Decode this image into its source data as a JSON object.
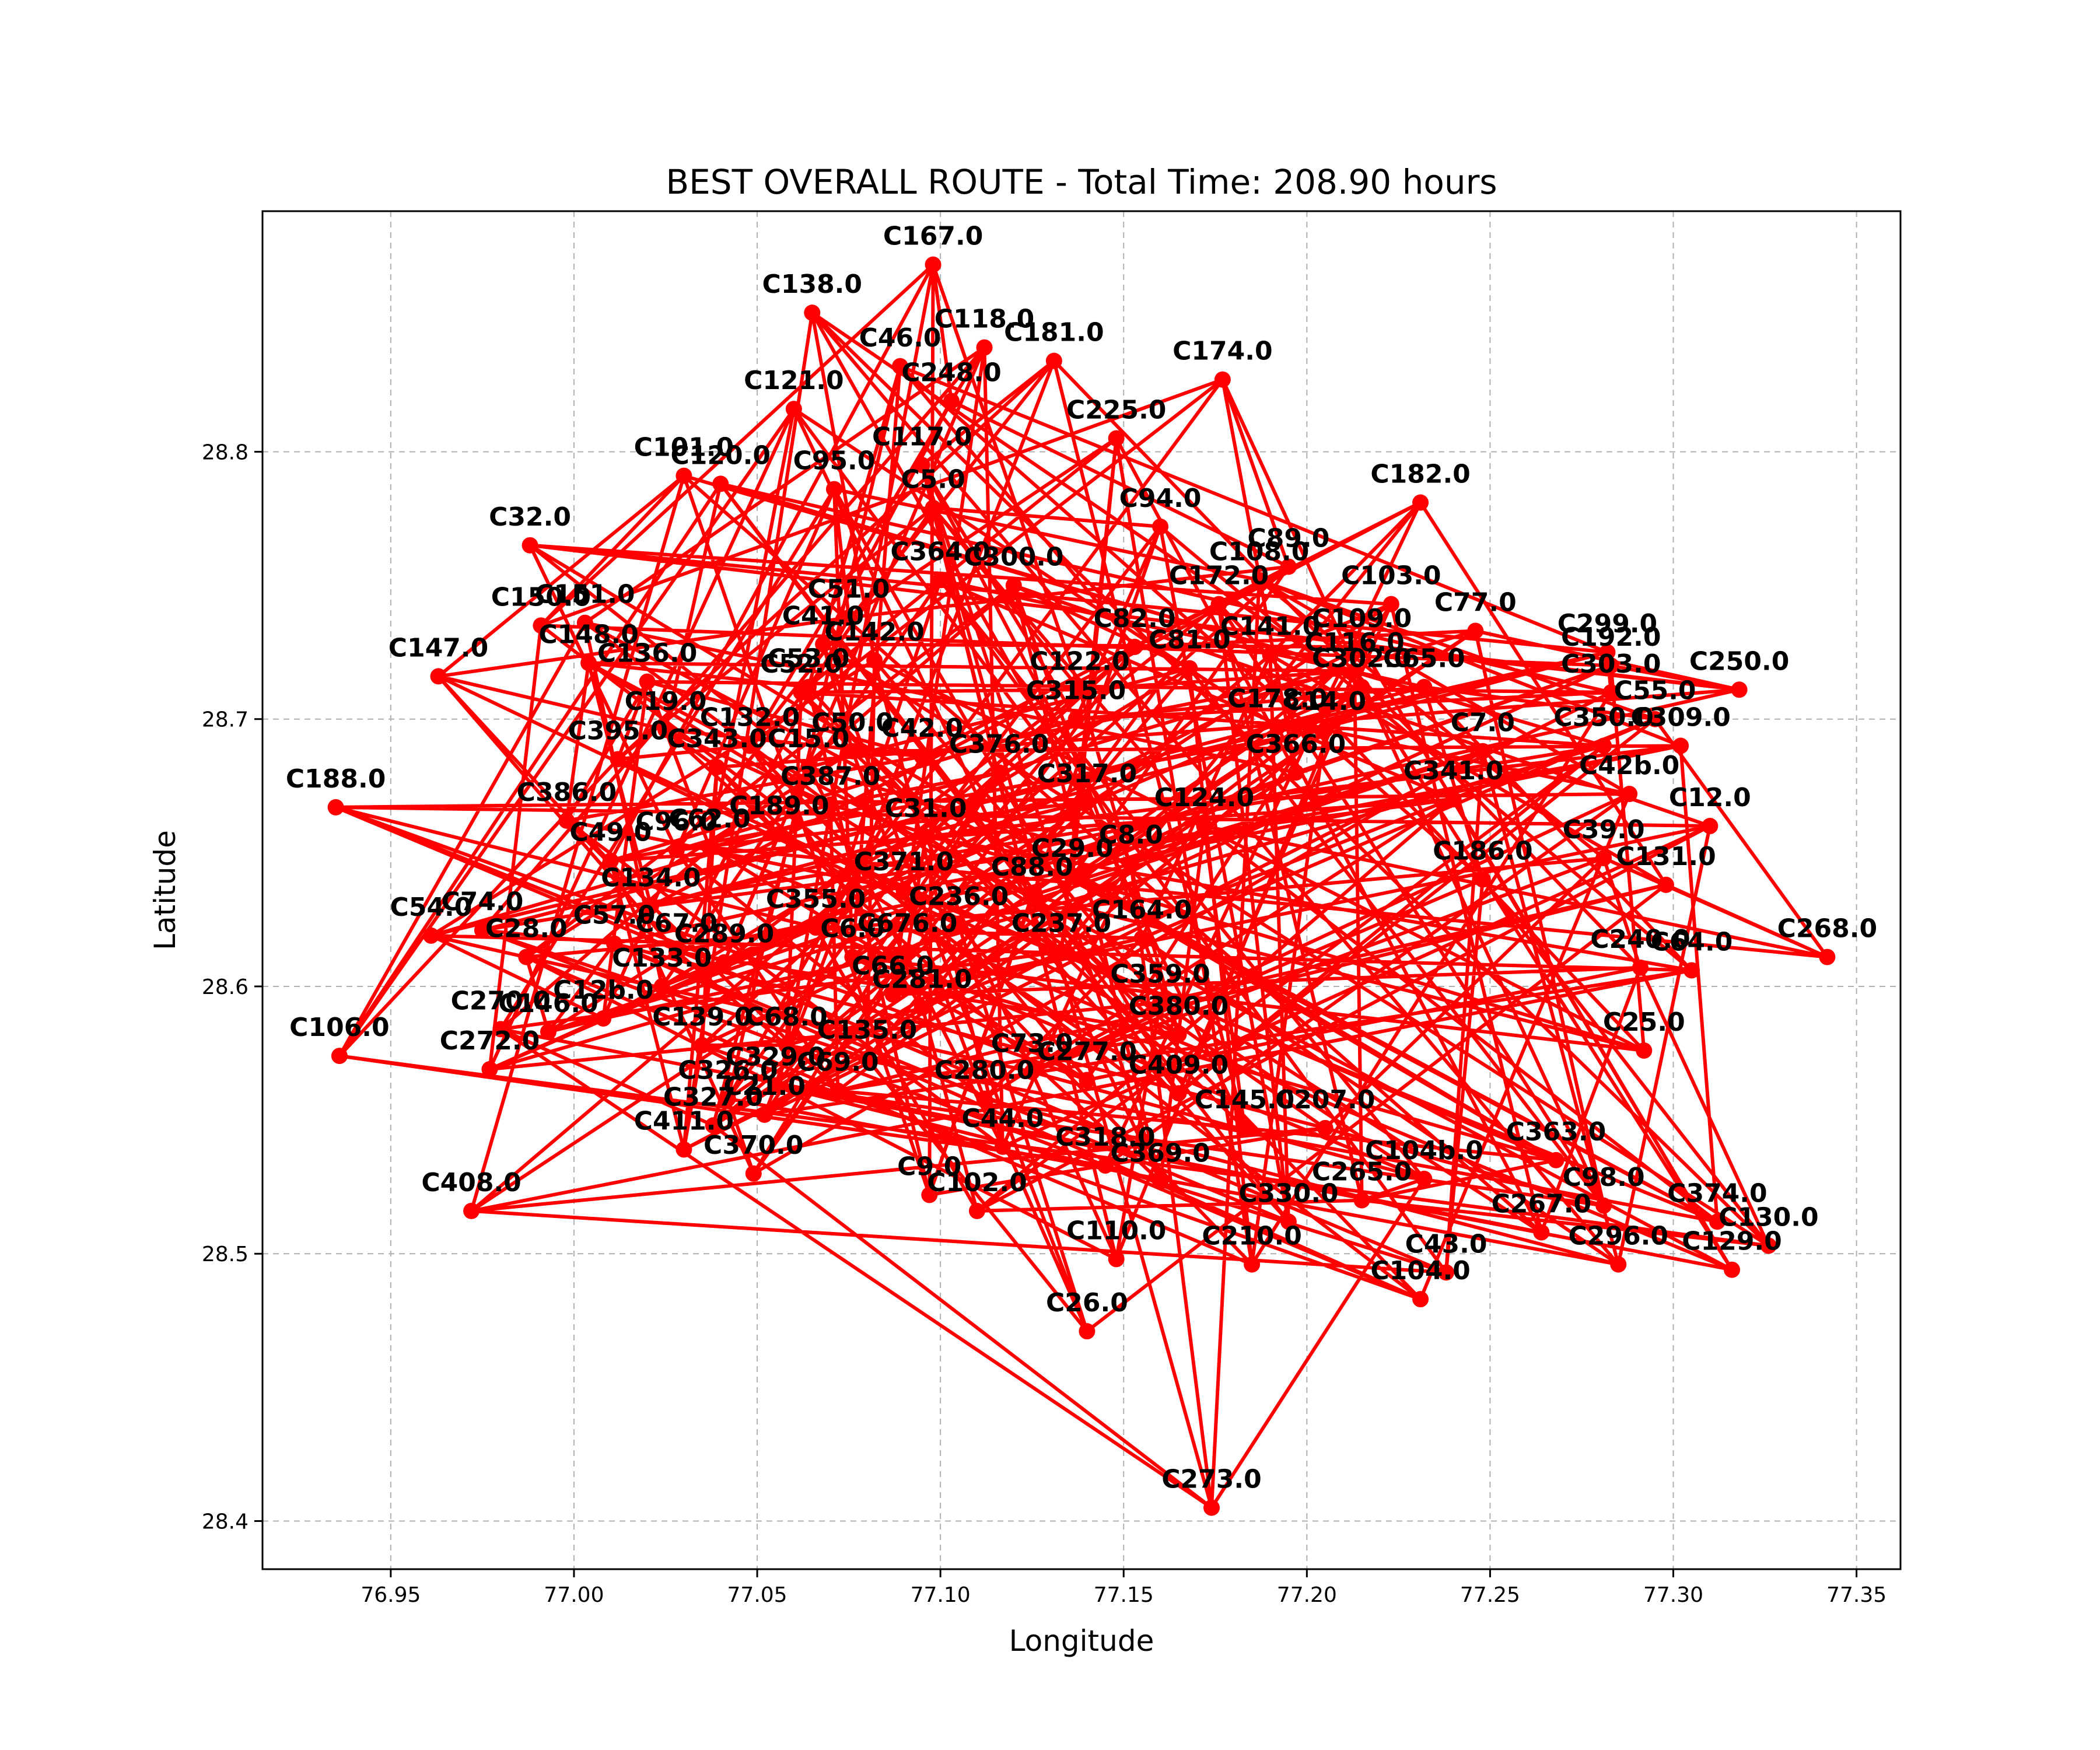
{
  "chart_data": {
    "type": "line",
    "title": "BEST OVERALL ROUTE - Total Time: 208.90 hours",
    "xlabel": "Longitude",
    "ylabel": "Latitude",
    "xlim": [
      76.915,
      77.362
    ],
    "ylim": [
      28.382,
      28.89
    ],
    "xticks": [
      "76.95",
      "77.00",
      "77.05",
      "77.10",
      "77.15",
      "77.20",
      "77.25",
      "77.30",
      "77.35"
    ],
    "yticks": [
      "28.4",
      "28.5",
      "28.6",
      "28.7",
      "28.8"
    ],
    "grid": true,
    "line_color": "#ff0000",
    "marker": "circle",
    "points": [
      {
        "label": "C167.0",
        "x": 77.098,
        "y": 28.87
      },
      {
        "label": "C138.0",
        "x": 77.065,
        "y": 28.852
      },
      {
        "label": "C118.0",
        "x": 77.112,
        "y": 28.839
      },
      {
        "label": "C181.0",
        "x": 77.131,
        "y": 28.834
      },
      {
        "label": "C46.0",
        "x": 77.089,
        "y": 28.832
      },
      {
        "label": "C248.0",
        "x": 77.103,
        "y": 28.819
      },
      {
        "label": "C121.0",
        "x": 77.06,
        "y": 28.816
      },
      {
        "label": "C174.0",
        "x": 77.177,
        "y": 28.827
      },
      {
        "label": "C225.0",
        "x": 77.148,
        "y": 28.805
      },
      {
        "label": "C117.0",
        "x": 77.095,
        "y": 28.795
      },
      {
        "label": "C101.0",
        "x": 77.03,
        "y": 28.791
      },
      {
        "label": "C120.0",
        "x": 77.04,
        "y": 28.788
      },
      {
        "label": "C95.0",
        "x": 77.071,
        "y": 28.786
      },
      {
        "label": "C5.0",
        "x": 77.098,
        "y": 28.779
      },
      {
        "label": "C182.0",
        "x": 77.231,
        "y": 28.781
      },
      {
        "label": "C94.0",
        "x": 77.16,
        "y": 28.772
      },
      {
        "label": "C32.0",
        "x": 76.988,
        "y": 28.765
      },
      {
        "label": "C364.0",
        "x": 77.1,
        "y": 28.752
      },
      {
        "label": "C300.0",
        "x": 77.12,
        "y": 28.75
      },
      {
        "label": "C89.0",
        "x": 77.195,
        "y": 28.757
      },
      {
        "label": "C108.0",
        "x": 77.187,
        "y": 28.752
      },
      {
        "label": "C172.0",
        "x": 77.176,
        "y": 28.743
      },
      {
        "label": "C103.0",
        "x": 77.223,
        "y": 28.743
      },
      {
        "label": "C51.0",
        "x": 77.075,
        "y": 28.738
      },
      {
        "label": "C150.0",
        "x": 76.991,
        "y": 28.735
      },
      {
        "label": "C151.0",
        "x": 77.003,
        "y": 28.736
      },
      {
        "label": "C77.0",
        "x": 77.246,
        "y": 28.733
      },
      {
        "label": "C41.0",
        "x": 77.068,
        "y": 28.728
      },
      {
        "label": "C82.0",
        "x": 77.153,
        "y": 28.727
      },
      {
        "label": "C109.0",
        "x": 77.215,
        "y": 28.727
      },
      {
        "label": "C141.0",
        "x": 77.19,
        "y": 28.724
      },
      {
        "label": "C148.0",
        "x": 77.004,
        "y": 28.721
      },
      {
        "label": "C147.0",
        "x": 76.963,
        "y": 28.716
      },
      {
        "label": "C136.0",
        "x": 77.02,
        "y": 28.714
      },
      {
        "label": "C142.0",
        "x": 77.082,
        "y": 28.722
      },
      {
        "label": "C81.0",
        "x": 77.168,
        "y": 28.719
      },
      {
        "label": "C116.0",
        "x": 77.213,
        "y": 28.718
      },
      {
        "label": "C299.0",
        "x": 77.282,
        "y": 28.725
      },
      {
        "label": "C192.0",
        "x": 77.283,
        "y": 28.72
      },
      {
        "label": "C52.0",
        "x": 77.062,
        "y": 28.71
      },
      {
        "label": "C53.0",
        "x": 77.064,
        "y": 28.712
      },
      {
        "label": "C122.0",
        "x": 77.138,
        "y": 28.711
      },
      {
        "label": "C302.0",
        "x": 77.215,
        "y": 28.712
      },
      {
        "label": "C65.0",
        "x": 77.232,
        "y": 28.712
      },
      {
        "label": "C303.0",
        "x": 77.283,
        "y": 28.71
      },
      {
        "label": "C250.0",
        "x": 77.318,
        "y": 28.711
      },
      {
        "label": "C55.0",
        "x": 77.295,
        "y": 28.7
      },
      {
        "label": "C315.0",
        "x": 77.137,
        "y": 28.7
      },
      {
        "label": "C178.0",
        "x": 77.192,
        "y": 28.697
      },
      {
        "label": "C14.0",
        "x": 77.205,
        "y": 28.696
      },
      {
        "label": "C19.0",
        "x": 77.025,
        "y": 28.696
      },
      {
        "label": "C132.0",
        "x": 77.048,
        "y": 28.69
      },
      {
        "label": "C50.0",
        "x": 77.076,
        "y": 28.688
      },
      {
        "label": "C42.0",
        "x": 77.095,
        "y": 28.686
      },
      {
        "label": "C7.0",
        "x": 77.248,
        "y": 28.688
      },
      {
        "label": "C350.0",
        "x": 77.281,
        "y": 28.69
      },
      {
        "label": "C309.0",
        "x": 77.302,
        "y": 28.69
      },
      {
        "label": "C395.0",
        "x": 77.012,
        "y": 28.685
      },
      {
        "label": "C343.0",
        "x": 77.039,
        "y": 28.682
      },
      {
        "label": "C15.0",
        "x": 77.064,
        "y": 28.682
      },
      {
        "label": "C376.0",
        "x": 77.116,
        "y": 28.68
      },
      {
        "label": "C366.0",
        "x": 77.197,
        "y": 28.68
      },
      {
        "label": "C317.0",
        "x": 77.14,
        "y": 28.669
      },
      {
        "label": "C341.0",
        "x": 77.24,
        "y": 28.67
      },
      {
        "label": "C42b.0",
        "x": 77.288,
        "y": 28.672
      },
      {
        "label": "C387.0",
        "x": 77.07,
        "y": 28.668
      },
      {
        "label": "C386.0",
        "x": 76.998,
        "y": 28.662
      },
      {
        "label": "C31.0",
        "x": 77.096,
        "y": 28.656
      },
      {
        "label": "C124.0",
        "x": 77.172,
        "y": 28.66
      },
      {
        "label": "C12.0",
        "x": 77.31,
        "y": 28.66
      },
      {
        "label": "C189.0",
        "x": 77.056,
        "y": 28.657
      },
      {
        "label": "C96.0",
        "x": 77.028,
        "y": 28.651
      },
      {
        "label": "C62.0",
        "x": 77.037,
        "y": 28.652
      },
      {
        "label": "C49.0",
        "x": 77.01,
        "y": 28.647
      },
      {
        "label": "C8.0",
        "x": 77.152,
        "y": 28.646
      },
      {
        "label": "C39.0",
        "x": 77.281,
        "y": 28.648
      },
      {
        "label": "C188.0",
        "x": 76.935,
        "y": 28.667
      },
      {
        "label": "C29.0",
        "x": 77.136,
        "y": 28.641
      },
      {
        "label": "C186.0",
        "x": 77.248,
        "y": 28.64
      },
      {
        "label": "C131.0",
        "x": 77.298,
        "y": 28.638
      },
      {
        "label": "C371.0",
        "x": 77.09,
        "y": 28.636
      },
      {
        "label": "C88.0",
        "x": 77.125,
        "y": 28.634
      },
      {
        "label": "C134.0",
        "x": 77.021,
        "y": 28.63
      },
      {
        "label": "C355.0",
        "x": 77.066,
        "y": 28.622
      },
      {
        "label": "C236.0",
        "x": 77.105,
        "y": 28.623
      },
      {
        "label": "C164.0",
        "x": 77.155,
        "y": 28.618
      },
      {
        "label": "C54.0",
        "x": 76.961,
        "y": 28.619
      },
      {
        "label": "C74.0",
        "x": 76.975,
        "y": 28.621
      },
      {
        "label": "C28.0",
        "x": 76.987,
        "y": 28.611
      },
      {
        "label": "C57.0",
        "x": 77.011,
        "y": 28.616
      },
      {
        "label": "C67.0",
        "x": 77.028,
        "y": 28.613
      },
      {
        "label": "C289.0",
        "x": 77.041,
        "y": 28.609
      },
      {
        "label": "C6.0",
        "x": 77.076,
        "y": 28.611
      },
      {
        "label": "C676.0",
        "x": 77.091,
        "y": 28.613
      },
      {
        "label": "C237.0",
        "x": 77.133,
        "y": 28.613
      },
      {
        "label": "C268.0",
        "x": 77.342,
        "y": 28.611
      },
      {
        "label": "C240.0",
        "x": 77.291,
        "y": 28.607
      },
      {
        "label": "C64.0",
        "x": 77.305,
        "y": 28.606
      },
      {
        "label": "C133.0",
        "x": 77.024,
        "y": 28.6
      },
      {
        "label": "C66.0",
        "x": 77.087,
        "y": 28.597
      },
      {
        "label": "C359.0",
        "x": 77.16,
        "y": 28.594
      },
      {
        "label": "C281.0",
        "x": 77.095,
        "y": 28.592
      },
      {
        "label": "C12b.0",
        "x": 77.008,
        "y": 28.588
      },
      {
        "label": "C270.0",
        "x": 76.98,
        "y": 28.584
      },
      {
        "label": "C146.0",
        "x": 76.993,
        "y": 28.583
      },
      {
        "label": "C139.0",
        "x": 77.035,
        "y": 28.578
      },
      {
        "label": "C68.0",
        "x": 77.058,
        "y": 28.578
      },
      {
        "label": "C135.0",
        "x": 77.08,
        "y": 28.573
      },
      {
        "label": "C106.0",
        "x": 76.936,
        "y": 28.574
      },
      {
        "label": "C272.0",
        "x": 76.977,
        "y": 28.569
      },
      {
        "label": "C380.0",
        "x": 77.165,
        "y": 28.582
      },
      {
        "label": "C73.0",
        "x": 77.125,
        "y": 28.568
      },
      {
        "label": "C25.0",
        "x": 77.292,
        "y": 28.576
      },
      {
        "label": "C280.0",
        "x": 77.112,
        "y": 28.558
      },
      {
        "label": "C277.0",
        "x": 77.14,
        "y": 28.565
      },
      {
        "label": "C409.0",
        "x": 77.165,
        "y": 28.56
      },
      {
        "label": "C326.0",
        "x": 77.042,
        "y": 28.558
      },
      {
        "label": "C329.0",
        "x": 77.055,
        "y": 28.563
      },
      {
        "label": "C69.0",
        "x": 77.072,
        "y": 28.561
      },
      {
        "label": "C327.0",
        "x": 77.038,
        "y": 28.548
      },
      {
        "label": "C21.0",
        "x": 77.052,
        "y": 28.552
      },
      {
        "label": "C145.0",
        "x": 77.183,
        "y": 28.547
      },
      {
        "label": "C207.0",
        "x": 77.205,
        "y": 28.547
      },
      {
        "label": "C411.0",
        "x": 77.03,
        "y": 28.539
      },
      {
        "label": "C44.0",
        "x": 77.117,
        "y": 28.54
      },
      {
        "label": "C318.0",
        "x": 77.145,
        "y": 28.533
      },
      {
        "label": "C370.0",
        "x": 77.049,
        "y": 28.53
      },
      {
        "label": "C369.0",
        "x": 77.16,
        "y": 28.527
      },
      {
        "label": "C9.0",
        "x": 77.097,
        "y": 28.522
      },
      {
        "label": "C102.0",
        "x": 77.11,
        "y": 28.516
      },
      {
        "label": "C363.0",
        "x": 77.268,
        "y": 28.535
      },
      {
        "label": "C104b.0",
        "x": 77.232,
        "y": 28.528
      },
      {
        "label": "C265.0",
        "x": 77.215,
        "y": 28.52
      },
      {
        "label": "C330.0",
        "x": 77.195,
        "y": 28.512
      },
      {
        "label": "C98.0",
        "x": 77.281,
        "y": 28.518
      },
      {
        "label": "C267.0",
        "x": 77.264,
        "y": 28.508
      },
      {
        "label": "C374.0",
        "x": 77.312,
        "y": 28.512
      },
      {
        "label": "C408.0",
        "x": 76.972,
        "y": 28.516
      },
      {
        "label": "C110.0",
        "x": 77.148,
        "y": 28.498
      },
      {
        "label": "C210.0",
        "x": 77.185,
        "y": 28.496
      },
      {
        "label": "C296.0",
        "x": 77.285,
        "y": 28.496
      },
      {
        "label": "C129.0",
        "x": 77.316,
        "y": 28.494
      },
      {
        "label": "C130.0",
        "x": 77.326,
        "y": 28.503
      },
      {
        "label": "C43.0",
        "x": 77.238,
        "y": 28.493
      },
      {
        "label": "C104.0",
        "x": 77.231,
        "y": 28.483
      },
      {
        "label": "C26.0",
        "x": 77.14,
        "y": 28.471
      },
      {
        "label": "C273.0",
        "x": 77.174,
        "y": 28.405
      }
    ]
  }
}
